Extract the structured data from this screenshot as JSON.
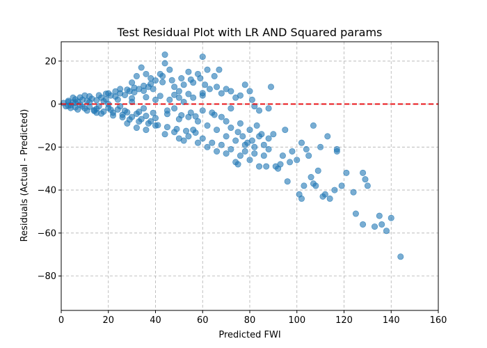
{
  "chart_data": {
    "type": "scatter",
    "title": "Test Residual Plot with LR AND Squared params",
    "xlabel": "Predicted FWI",
    "ylabel": "Residuals (Actual - Predicted)",
    "xlim": [
      0,
      160
    ],
    "ylim": [
      -96,
      29
    ],
    "xticks": [
      0,
      20,
      40,
      60,
      80,
      100,
      120,
      140,
      160
    ],
    "yticks": [
      -80,
      -60,
      -40,
      -20,
      0,
      20
    ],
    "xtick_labels": [
      "0",
      "20",
      "40",
      "60",
      "80",
      "100",
      "120",
      "140",
      "160"
    ],
    "ytick_labels": [
      "−80",
      "−60",
      "−40",
      "−20",
      "0",
      "20"
    ],
    "grid": true,
    "reference_line": {
      "y": 0,
      "style": "dashed",
      "color": "#e8151a"
    },
    "point_color": "#1f77b4",
    "point_alpha": 0.6,
    "points": [
      [
        1,
        0.5
      ],
      [
        2,
        -1
      ],
      [
        3,
        1
      ],
      [
        4,
        -0.5
      ],
      [
        5,
        0.8
      ],
      [
        6,
        -1.5
      ],
      [
        7,
        1.2
      ],
      [
        8,
        -0.3
      ],
      [
        9,
        2
      ],
      [
        10,
        -2
      ],
      [
        11,
        1.5
      ],
      [
        12,
        -1.2
      ],
      [
        13,
        2.5
      ],
      [
        14,
        -2.8
      ],
      [
        15,
        1.8
      ],
      [
        16,
        -1
      ],
      [
        17,
        3
      ],
      [
        18,
        -3.5
      ],
      [
        19,
        2.2
      ],
      [
        20,
        -1.8
      ],
      [
        21,
        4
      ],
      [
        22,
        -4
      ],
      [
        23,
        3.5
      ],
      [
        24,
        -2.5
      ],
      [
        25,
        5
      ],
      [
        26,
        -5
      ],
      [
        27,
        4.2
      ],
      [
        28,
        -3.8
      ],
      [
        29,
        6
      ],
      [
        30,
        -6
      ],
      [
        31,
        5.5
      ],
      [
        32,
        -4.5
      ],
      [
        33,
        7
      ],
      [
        34,
        -7
      ],
      [
        35,
        6.2
      ],
      [
        36,
        -5.5
      ],
      [
        37,
        8
      ],
      [
        38,
        -8
      ],
      [
        39,
        7
      ],
      [
        40,
        -6.5
      ],
      [
        3,
        -0.8
      ],
      [
        6,
        0.6
      ],
      [
        9,
        -1.1
      ],
      [
        12,
        0.9
      ],
      [
        15,
        -2.2
      ],
      [
        18,
        1.3
      ],
      [
        21,
        -2.6
      ],
      [
        24,
        2.1
      ],
      [
        27,
        -3.1
      ],
      [
        30,
        2.7
      ],
      [
        33,
        -3.6
      ],
      [
        36,
        3.2
      ],
      [
        39,
        -4.1
      ],
      [
        42,
        3.8
      ],
      [
        45,
        -4.6
      ],
      [
        48,
        4.3
      ],
      [
        51,
        -5.2
      ],
      [
        54,
        4.7
      ],
      [
        57,
        -5.7
      ],
      [
        60,
        5.1
      ],
      [
        5,
        3
      ],
      [
        10,
        4
      ],
      [
        15,
        -4
      ],
      [
        20,
        5
      ],
      [
        25,
        7
      ],
      [
        30,
        10
      ],
      [
        32,
        13
      ],
      [
        34,
        17
      ],
      [
        36,
        14
      ],
      [
        38,
        12
      ],
      [
        40,
        11
      ],
      [
        42,
        14
      ],
      [
        43,
        13
      ],
      [
        44,
        23
      ],
      [
        44,
        19
      ],
      [
        46,
        16
      ],
      [
        48,
        8
      ],
      [
        50,
        6
      ],
      [
        52,
        9
      ],
      [
        54,
        15
      ],
      [
        56,
        10
      ],
      [
        58,
        14
      ],
      [
        59,
        12
      ],
      [
        60,
        22
      ],
      [
        61,
        9
      ],
      [
        62,
        16
      ],
      [
        63,
        7
      ],
      [
        65,
        13
      ],
      [
        66,
        8
      ],
      [
        67,
        16
      ],
      [
        68,
        5
      ],
      [
        70,
        7
      ],
      [
        72,
        6
      ],
      [
        74,
        3
      ],
      [
        76,
        4
      ],
      [
        78,
        9
      ],
      [
        80,
        6
      ],
      [
        81,
        2
      ],
      [
        82,
        -1
      ],
      [
        84,
        -3
      ],
      [
        88,
        -2
      ],
      [
        89,
        8
      ],
      [
        28,
        -9
      ],
      [
        32,
        -11
      ],
      [
        36,
        -12
      ],
      [
        40,
        -10
      ],
      [
        44,
        -14
      ],
      [
        48,
        -13
      ],
      [
        50,
        -16
      ],
      [
        52,
        -17
      ],
      [
        54,
        -15
      ],
      [
        56,
        -12
      ],
      [
        58,
        -18
      ],
      [
        60,
        -16
      ],
      [
        62,
        -20
      ],
      [
        64,
        -18
      ],
      [
        66,
        -22
      ],
      [
        68,
        -19
      ],
      [
        70,
        -23
      ],
      [
        72,
        -21
      ],
      [
        74,
        -27
      ],
      [
        75,
        -28
      ],
      [
        76,
        -24
      ],
      [
        78,
        -22
      ],
      [
        80,
        -26
      ],
      [
        82,
        -20
      ],
      [
        84,
        -29
      ],
      [
        86,
        -24
      ],
      [
        87,
        -29
      ],
      [
        88,
        -16
      ],
      [
        90,
        -14
      ],
      [
        91,
        -29
      ],
      [
        92,
        -30
      ],
      [
        93,
        -28
      ],
      [
        94,
        -24
      ],
      [
        95,
        -12
      ],
      [
        96,
        -36
      ],
      [
        97,
        -27
      ],
      [
        98,
        -22
      ],
      [
        100,
        -26
      ],
      [
        101,
        -42
      ],
      [
        102,
        -44
      ],
      [
        102,
        -18
      ],
      [
        103,
        -38
      ],
      [
        104,
        -21
      ],
      [
        105,
        -24
      ],
      [
        106,
        -34
      ],
      [
        107,
        -37
      ],
      [
        107,
        -10
      ],
      [
        108,
        -38
      ],
      [
        109,
        -31
      ],
      [
        110,
        -20
      ],
      [
        111,
        -43
      ],
      [
        112,
        -42
      ],
      [
        113,
        -15
      ],
      [
        114,
        -44
      ],
      [
        116,
        -40
      ],
      [
        117,
        -22
      ],
      [
        117,
        -21
      ],
      [
        119,
        -38
      ],
      [
        121,
        -32
      ],
      [
        124,
        -41
      ],
      [
        125,
        -51
      ],
      [
        128,
        -56
      ],
      [
        128,
        -32
      ],
      [
        129,
        -35
      ],
      [
        130,
        -38
      ],
      [
        133,
        -57
      ],
      [
        135,
        -52
      ],
      [
        136,
        -56
      ],
      [
        138,
        -59
      ],
      [
        140,
        -53
      ],
      [
        144,
        -71
      ],
      [
        3,
        1.5
      ],
      [
        4,
        -1.8
      ],
      [
        6,
        2.2
      ],
      [
        7,
        -2.5
      ],
      [
        8,
        3.1
      ],
      [
        11,
        -3
      ],
      [
        12,
        3.6
      ],
      [
        14,
        -3.2
      ],
      [
        16,
        4.1
      ],
      [
        17,
        -4.4
      ],
      [
        19,
        4.8
      ],
      [
        22,
        -5.3
      ],
      [
        23,
        5.9
      ],
      [
        26,
        -6.1
      ],
      [
        28,
        6.7
      ],
      [
        29,
        -7.2
      ],
      [
        31,
        7.6
      ],
      [
        33,
        -8.1
      ],
      [
        35,
        8.5
      ],
      [
        37,
        -9
      ],
      [
        38,
        9.4
      ],
      [
        41,
        -9.8
      ],
      [
        43,
        10.2
      ],
      [
        45,
        -10.7
      ],
      [
        47,
        11.1
      ],
      [
        49,
        -11.6
      ],
      [
        51,
        12
      ],
      [
        53,
        -12.5
      ],
      [
        55,
        11.4
      ],
      [
        57,
        -13.3
      ],
      [
        20,
        0
      ],
      [
        25,
        -1
      ],
      [
        30,
        1
      ],
      [
        35,
        -2
      ],
      [
        40,
        2
      ],
      [
        45,
        -3
      ],
      [
        50,
        3
      ],
      [
        55,
        -4
      ],
      [
        60,
        4
      ],
      [
        65,
        -5
      ],
      [
        70,
        -8
      ],
      [
        72,
        -11
      ],
      [
        75,
        -13
      ],
      [
        77,
        -15
      ],
      [
        79,
        -18
      ],
      [
        81,
        -17
      ],
      [
        83,
        -10
      ],
      [
        85,
        -14
      ],
      [
        86,
        -19
      ],
      [
        88,
        -21
      ],
      [
        46,
        2
      ],
      [
        48,
        -2
      ],
      [
        50,
        -7
      ],
      [
        52,
        1
      ],
      [
        54,
        -6
      ],
      [
        56,
        3
      ],
      [
        58,
        -8
      ],
      [
        60,
        -3
      ],
      [
        62,
        -10
      ],
      [
        64,
        -4
      ],
      [
        66,
        -12
      ],
      [
        68,
        -6
      ],
      [
        70,
        -15
      ],
      [
        72,
        -2
      ],
      [
        74,
        -17
      ],
      [
        76,
        -9
      ],
      [
        78,
        -19
      ],
      [
        80,
        -12
      ],
      [
        82,
        -23
      ],
      [
        84,
        -15
      ]
    ]
  }
}
